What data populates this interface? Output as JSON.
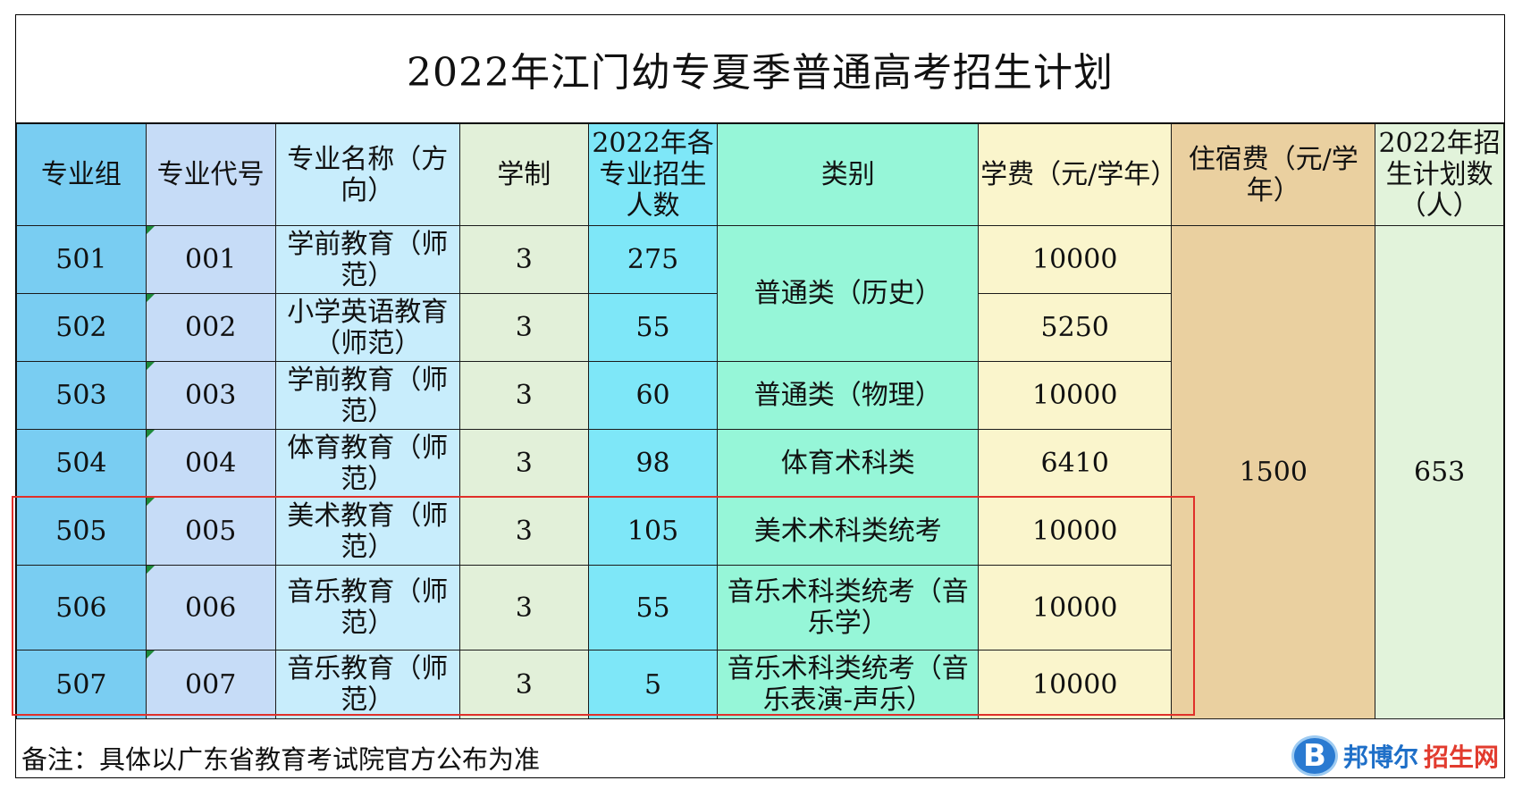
{
  "title": "2022年江门幼专夏季普通高考招生计划",
  "headers": [
    "专业组",
    "专业代号",
    "专业名称（方向）",
    "学制",
    "2022年各专业招生人数",
    "类别",
    "学费（元/学年）",
    "住宿费（元/学年）",
    "2022年招生计划数（人）"
  ],
  "rows": [
    {
      "group": "501",
      "code": "001",
      "name": "学前教育（师范）",
      "years": "3",
      "count": "275",
      "fee": "10000"
    },
    {
      "group": "502",
      "code": "002",
      "name": "小学英语教育（师范）",
      "years": "3",
      "count": "55",
      "fee": "5250"
    },
    {
      "group": "503",
      "code": "003",
      "name": "学前教育（师范）",
      "years": "3",
      "count": "60",
      "fee": "10000"
    },
    {
      "group": "504",
      "code": "004",
      "name": "体育教育（师范）",
      "years": "3",
      "count": "98",
      "fee": "6410"
    },
    {
      "group": "505",
      "code": "005",
      "name": "美术教育（师范）",
      "years": "3",
      "count": "105",
      "fee": "10000"
    },
    {
      "group": "506",
      "code": "006",
      "name": "音乐教育（师范）",
      "years": "3",
      "count": "55",
      "fee": "10000"
    },
    {
      "group": "507",
      "code": "007",
      "name": "音乐教育（师范）",
      "years": "3",
      "count": "5",
      "fee": "10000"
    }
  ],
  "categories": [
    "普通类（历史）",
    "普通类（物理）",
    "体育术科类",
    "美术术科类统考",
    "音乐术科类统考（音乐学）",
    "音乐术科类统考（音乐表演-声乐）"
  ],
  "dorm_fee": "1500",
  "total_plan": "653",
  "note": "备注：具体以广东省教育考试院官方公布为准",
  "watermark": {
    "badge_letter": "B",
    "text_blue": "邦博尔",
    "text_red": "招生网"
  }
}
